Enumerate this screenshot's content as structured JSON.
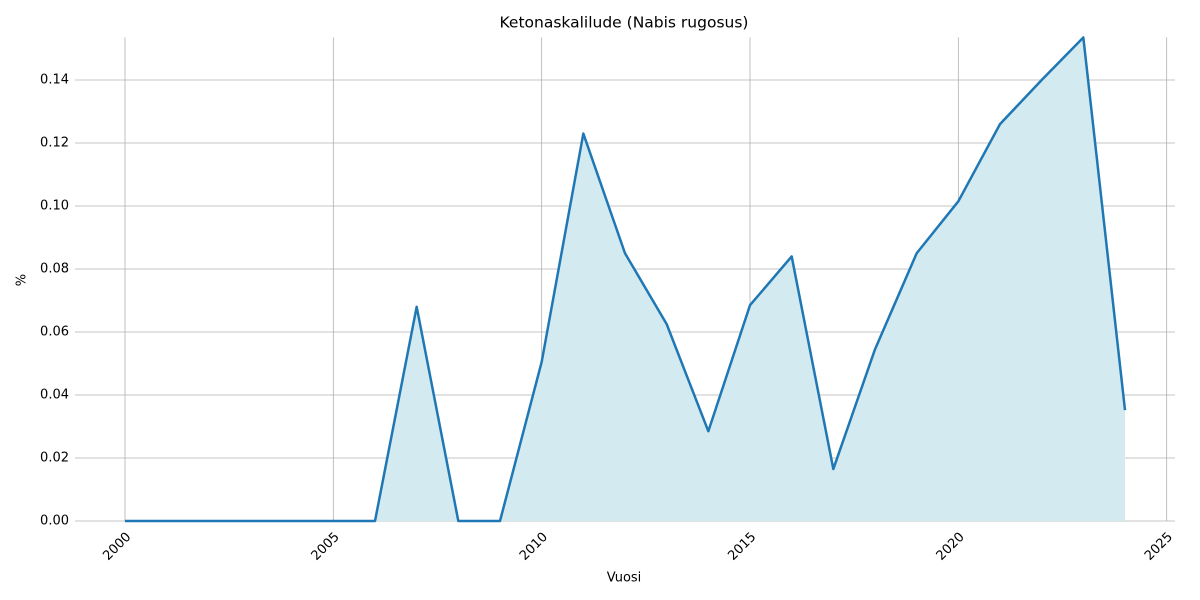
{
  "chart_data": {
    "type": "line",
    "title": "Ketonaskalilude (Nabis rugosus)",
    "x_label": "Vuosi",
    "y_label": "%",
    "x": [
      2000,
      2001,
      2002,
      2003,
      2004,
      2005,
      2006,
      2007,
      2008,
      2009,
      2010,
      2011,
      2012,
      2013,
      2014,
      2015,
      2016,
      2017,
      2018,
      2019,
      2020,
      2021,
      2022,
      2023,
      2024
    ],
    "values": [
      0,
      0,
      0,
      0,
      0,
      0,
      0,
      0.068,
      0,
      0,
      0.0505,
      0.123,
      0.085,
      0.0625,
      0.0285,
      0.0685,
      0.084,
      0.0165,
      0.0545,
      0.085,
      0.1015,
      0.126,
      0.14,
      0.1535,
      0.0352
    ],
    "color": "#1f77b4",
    "fill_color": "#d4eaf1",
    "xlim": [
      1998.8,
      2025.2
    ],
    "ylim": [
      0,
      0.1535
    ],
    "xticks": [
      2000,
      2005,
      2010,
      2015,
      2020,
      2025
    ],
    "yticks": [
      {
        "value": 0,
        "label": "0.00"
      },
      {
        "value": 0.02,
        "label": "0.02"
      },
      {
        "value": 0.04,
        "label": "0.04"
      },
      {
        "value": 0.06,
        "label": "0.06"
      },
      {
        "value": 0.08,
        "label": "0.08"
      },
      {
        "value": 0.1,
        "label": "0.10"
      },
      {
        "value": 0.12,
        "label": "0.12"
      },
      {
        "value": 0.14,
        "label": "0.14"
      }
    ],
    "grid": true
  }
}
